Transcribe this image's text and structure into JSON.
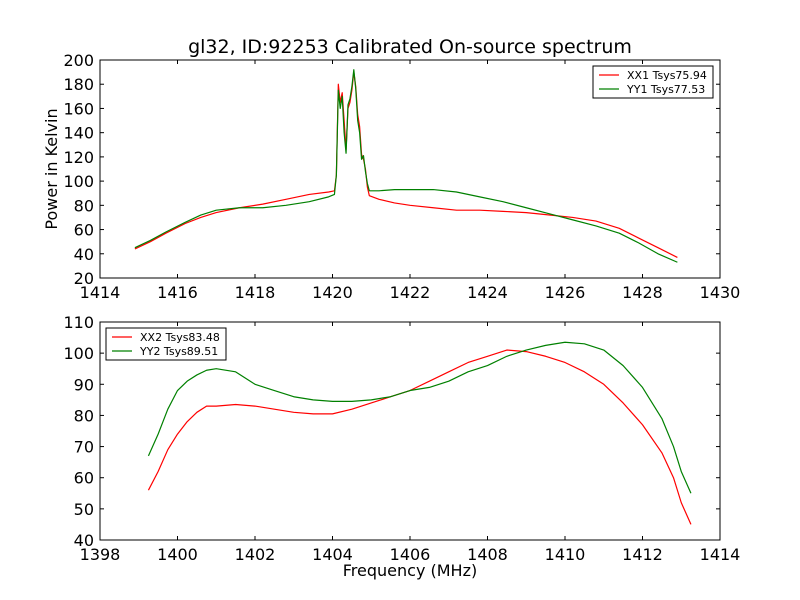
{
  "chart_data": [
    {
      "type": "line",
      "title": "gl32, ID:92253 Calibrated On-source spectrum",
      "xlabel": "",
      "ylabel": "Power in Kelvin",
      "xlim": [
        1414,
        1430
      ],
      "ylim": [
        20,
        200
      ],
      "xticks": [
        1414,
        1416,
        1418,
        1420,
        1422,
        1424,
        1426,
        1428,
        1430
      ],
      "yticks": [
        20,
        40,
        60,
        80,
        100,
        120,
        140,
        160,
        180,
        200
      ],
      "legend_position": "top-right",
      "series": [
        {
          "name": "XX1 Tsys75.94",
          "color": "#ff0000",
          "points": [
            [
              1414.9,
              44
            ],
            [
              1415.3,
              50
            ],
            [
              1415.7,
              57
            ],
            [
              1416.2,
              65
            ],
            [
              1416.6,
              70
            ],
            [
              1417.0,
              74
            ],
            [
              1417.6,
              78
            ],
            [
              1418.2,
              81
            ],
            [
              1418.8,
              85
            ],
            [
              1419.4,
              89
            ],
            [
              1419.9,
              91
            ],
            [
              1420.05,
              92
            ],
            [
              1420.1,
              105
            ],
            [
              1420.15,
              180
            ],
            [
              1420.2,
              165
            ],
            [
              1420.25,
              173
            ],
            [
              1420.3,
              150
            ],
            [
              1420.35,
              126
            ],
            [
              1420.4,
              160
            ],
            [
              1420.45,
              165
            ],
            [
              1420.5,
              175
            ],
            [
              1420.55,
              190
            ],
            [
              1420.6,
              178
            ],
            [
              1420.65,
              155
            ],
            [
              1420.7,
              145
            ],
            [
              1420.75,
              122
            ],
            [
              1420.8,
              118
            ],
            [
              1420.85,
              110
            ],
            [
              1420.9,
              95
            ],
            [
              1420.95,
              88
            ],
            [
              1421.2,
              85
            ],
            [
              1421.6,
              82
            ],
            [
              1422.0,
              80
            ],
            [
              1422.6,
              78
            ],
            [
              1423.2,
              76
            ],
            [
              1423.8,
              76
            ],
            [
              1424.4,
              75
            ],
            [
              1425.0,
              74
            ],
            [
              1425.6,
              72
            ],
            [
              1426.2,
              70
            ],
            [
              1426.8,
              67
            ],
            [
              1427.4,
              61
            ],
            [
              1427.9,
              53
            ],
            [
              1428.4,
              45
            ],
            [
              1428.9,
              37
            ]
          ]
        },
        {
          "name": "YY1 Tsys77.53",
          "color": "#008000",
          "points": [
            [
              1414.9,
              45
            ],
            [
              1415.3,
              51
            ],
            [
              1415.7,
              58
            ],
            [
              1416.2,
              66
            ],
            [
              1416.6,
              72
            ],
            [
              1417.0,
              76
            ],
            [
              1417.6,
              78
            ],
            [
              1418.2,
              78
            ],
            [
              1418.8,
              80
            ],
            [
              1419.4,
              83
            ],
            [
              1419.9,
              87
            ],
            [
              1420.05,
              89
            ],
            [
              1420.1,
              105
            ],
            [
              1420.15,
              175
            ],
            [
              1420.2,
              160
            ],
            [
              1420.25,
              170
            ],
            [
              1420.3,
              140
            ],
            [
              1420.35,
              123
            ],
            [
              1420.4,
              163
            ],
            [
              1420.45,
              168
            ],
            [
              1420.5,
              178
            ],
            [
              1420.55,
              192
            ],
            [
              1420.6,
              176
            ],
            [
              1420.65,
              150
            ],
            [
              1420.7,
              140
            ],
            [
              1420.75,
              118
            ],
            [
              1420.8,
              121
            ],
            [
              1420.85,
              108
            ],
            [
              1420.9,
              98
            ],
            [
              1420.95,
              92
            ],
            [
              1421.2,
              92
            ],
            [
              1421.6,
              93
            ],
            [
              1422.0,
              93
            ],
            [
              1422.6,
              93
            ],
            [
              1423.2,
              91
            ],
            [
              1423.8,
              87
            ],
            [
              1424.4,
              83
            ],
            [
              1425.0,
              78
            ],
            [
              1425.6,
              73
            ],
            [
              1426.2,
              68
            ],
            [
              1426.8,
              63
            ],
            [
              1427.4,
              57
            ],
            [
              1427.9,
              49
            ],
            [
              1428.4,
              40
            ],
            [
              1428.9,
              33
            ]
          ]
        }
      ]
    },
    {
      "type": "line",
      "title": "",
      "xlabel": "Frequency (MHz)",
      "ylabel": "",
      "xlim": [
        1398,
        1414
      ],
      "ylim": [
        40,
        110
      ],
      "xticks": [
        1398,
        1400,
        1402,
        1404,
        1406,
        1408,
        1410,
        1412,
        1414
      ],
      "yticks": [
        40,
        50,
        60,
        70,
        80,
        90,
        100,
        110
      ],
      "legend_position": "top-left",
      "series": [
        {
          "name": "XX2 Tsys83.48",
          "color": "#ff0000",
          "points": [
            [
              1399.25,
              56
            ],
            [
              1399.5,
              62
            ],
            [
              1399.75,
              69
            ],
            [
              1400.0,
              74
            ],
            [
              1400.25,
              78
            ],
            [
              1400.5,
              81
            ],
            [
              1400.75,
              83
            ],
            [
              1401.0,
              83
            ],
            [
              1401.5,
              83.5
            ],
            [
              1402.0,
              83
            ],
            [
              1402.5,
              82
            ],
            [
              1403.0,
              81
            ],
            [
              1403.5,
              80.5
            ],
            [
              1404.0,
              80.5
            ],
            [
              1404.5,
              82
            ],
            [
              1405.0,
              84
            ],
            [
              1405.5,
              86
            ],
            [
              1406.0,
              88
            ],
            [
              1406.5,
              91
            ],
            [
              1407.0,
              94
            ],
            [
              1407.5,
              97
            ],
            [
              1408.0,
              99
            ],
            [
              1408.5,
              101
            ],
            [
              1409.0,
              100.5
            ],
            [
              1409.5,
              99
            ],
            [
              1410.0,
              97
            ],
            [
              1410.5,
              94
            ],
            [
              1411.0,
              90
            ],
            [
              1411.5,
              84
            ],
            [
              1412.0,
              77
            ],
            [
              1412.5,
              68
            ],
            [
              1412.8,
              60
            ],
            [
              1413.0,
              52
            ],
            [
              1413.25,
              45
            ]
          ]
        },
        {
          "name": "YY2 Tsys89.51",
          "color": "#008000",
          "points": [
            [
              1399.25,
              67
            ],
            [
              1399.5,
              74
            ],
            [
              1399.75,
              82
            ],
            [
              1400.0,
              88
            ],
            [
              1400.25,
              91
            ],
            [
              1400.5,
              93
            ],
            [
              1400.75,
              94.5
            ],
            [
              1401.0,
              95
            ],
            [
              1401.5,
              94
            ],
            [
              1402.0,
              90
            ],
            [
              1402.5,
              88
            ],
            [
              1403.0,
              86
            ],
            [
              1403.5,
              85
            ],
            [
              1404.0,
              84.5
            ],
            [
              1404.5,
              84.5
            ],
            [
              1405.0,
              85
            ],
            [
              1405.5,
              86
            ],
            [
              1406.0,
              88
            ],
            [
              1406.5,
              89
            ],
            [
              1407.0,
              91
            ],
            [
              1407.5,
              94
            ],
            [
              1408.0,
              96
            ],
            [
              1408.5,
              99
            ],
            [
              1409.0,
              101
            ],
            [
              1409.5,
              102.5
            ],
            [
              1410.0,
              103.5
            ],
            [
              1410.5,
              103
            ],
            [
              1411.0,
              101
            ],
            [
              1411.5,
              96
            ],
            [
              1412.0,
              89
            ],
            [
              1412.5,
              79
            ],
            [
              1412.8,
              70
            ],
            [
              1413.0,
              62
            ],
            [
              1413.25,
              55
            ]
          ]
        }
      ]
    }
  ]
}
